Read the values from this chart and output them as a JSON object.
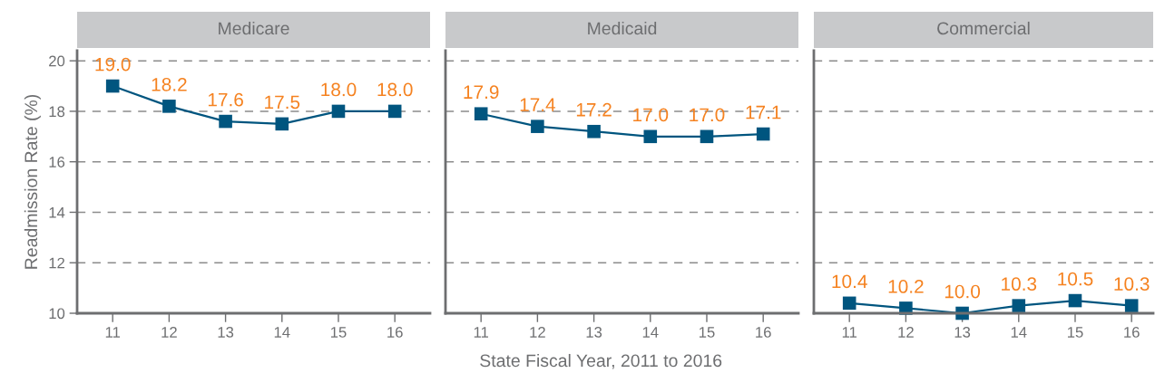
{
  "chart_data": [
    {
      "type": "line",
      "title": "Medicare",
      "ylabel": "Readmission Rate (%)",
      "categories": [
        "11",
        "12",
        "13",
        "14",
        "15",
        "16"
      ],
      "series": [
        {
          "color": "#00557f",
          "values": [
            19.0,
            18.2,
            17.6,
            17.5,
            18.0,
            18.0
          ],
          "value_labels": [
            "19.0",
            "18.2",
            "17.6",
            "17.5",
            "18.0",
            "18.0"
          ]
        }
      ],
      "marker": "square",
      "ylim": [
        10,
        20.4
      ],
      "yticks": [
        10,
        12,
        14,
        16,
        18,
        20
      ],
      "grid": "y"
    },
    {
      "type": "line",
      "title": "Medicaid",
      "xlabel": "State Fiscal Year, 2011 to 2016",
      "categories": [
        "11",
        "12",
        "13",
        "14",
        "15",
        "16"
      ],
      "series": [
        {
          "color": "#00557f",
          "values": [
            17.9,
            17.4,
            17.2,
            17.0,
            17.0,
            17.1
          ],
          "value_labels": [
            "17.9",
            "17.4",
            "17.2",
            "17.0",
            "17.0",
            "17.1"
          ]
        }
      ],
      "marker": "square",
      "ylim": [
        10,
        20.4
      ],
      "yticks": [
        10,
        12,
        14,
        16,
        18,
        20
      ],
      "grid": "y",
      "tick_labels": "x"
    },
    {
      "type": "line",
      "title": "Commercial",
      "categories": [
        "11",
        "12",
        "13",
        "14",
        "15",
        "16"
      ],
      "series": [
        {
          "color": "#00557f",
          "values": [
            10.4,
            10.2,
            10.0,
            10.3,
            10.5,
            10.3
          ],
          "value_labels": [
            "10.4",
            "10.2",
            "10.0",
            "10.3",
            "10.5",
            "10.3"
          ]
        }
      ],
      "marker": "square",
      "ylim": [
        10,
        20.4
      ],
      "yticks": [
        10,
        12,
        14,
        16,
        18,
        20
      ],
      "grid": "y",
      "tick_labels": "x"
    }
  ]
}
